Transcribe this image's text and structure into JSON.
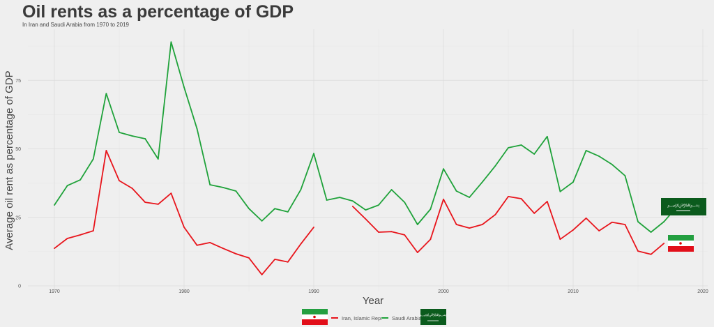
{
  "chart_data": {
    "type": "line",
    "title": "Oil rents as a percentage of GDP",
    "subtitle": "In Iran and Saudi Arabia from 1970 to 2019",
    "xlabel": "Year",
    "ylabel": "Average oil rent as percentage of GDP",
    "xlim": [
      1967,
      2021
    ],
    "ylim": [
      0,
      90
    ],
    "xticks": [
      1970,
      1980,
      1990,
      2000,
      2010,
      2020
    ],
    "yticks": [
      0,
      25,
      50,
      75
    ],
    "grid": true,
    "legend_position": "bottom",
    "series": [
      {
        "name": "Iran, Islamic Rep.",
        "color": "#e8141b",
        "x": [
          1970,
          1971,
          1972,
          1973,
          1974,
          1975,
          1976,
          1977,
          1978,
          1979,
          1980,
          1981,
          1982,
          1983,
          1984,
          1985,
          1986,
          1987,
          1988,
          1989,
          1990,
          1991,
          1992,
          1993,
          1994,
          1995,
          1996,
          1997,
          1998,
          1999,
          2000,
          2001,
          2002,
          2003,
          2004,
          2005,
          2006,
          2007,
          2008,
          2009,
          2010,
          2011,
          2012,
          2013,
          2014,
          2015,
          2016,
          2017
        ],
        "values": [
          13.7,
          17.3,
          18.6,
          20.1,
          49.4,
          38.4,
          35.6,
          30.5,
          29.8,
          33.8,
          21.4,
          14.8,
          15.8,
          13.7,
          11.7,
          10.2,
          4.1,
          9.7,
          8.7,
          15.3,
          21.4,
          null,
          null,
          29.0,
          24.4,
          19.6,
          19.8,
          18.6,
          12.2,
          17.0,
          31.6,
          22.4,
          21.1,
          22.4,
          26.0,
          32.6,
          31.8,
          26.5,
          30.8,
          17.0,
          20.4,
          24.7,
          20.1,
          23.2,
          22.4,
          12.7,
          11.5,
          15.5
        ]
      },
      {
        "name": "Saudi Arabia",
        "color": "#1fa23a",
        "x": [
          1970,
          1971,
          1972,
          1973,
          1974,
          1975,
          1976,
          1977,
          1978,
          1979,
          1980,
          1981,
          1982,
          1983,
          1984,
          1985,
          1986,
          1987,
          1988,
          1989,
          1990,
          1991,
          1992,
          1993,
          1994,
          1995,
          1996,
          1997,
          1998,
          1999,
          2000,
          2001,
          2002,
          2003,
          2004,
          2005,
          2006,
          2007,
          2008,
          2009,
          2010,
          2011,
          2012,
          2013,
          2014,
          2015,
          2016,
          2017,
          2018
        ],
        "values": [
          29.5,
          36.6,
          38.7,
          46.3,
          70.2,
          56.0,
          54.7,
          53.7,
          46.3,
          89.0,
          72.5,
          57.3,
          36.9,
          35.9,
          34.6,
          28.2,
          23.7,
          28.2,
          27.0,
          35.1,
          48.3,
          31.3,
          32.3,
          31.0,
          27.7,
          29.5,
          35.1,
          30.5,
          22.4,
          28.0,
          42.7,
          34.6,
          32.3,
          37.9,
          43.8,
          50.4,
          51.4,
          48.1,
          54.5,
          34.4,
          37.9,
          49.4,
          47.3,
          44.3,
          40.2,
          23.4,
          19.6,
          23.4,
          28.8
        ]
      }
    ]
  }
}
